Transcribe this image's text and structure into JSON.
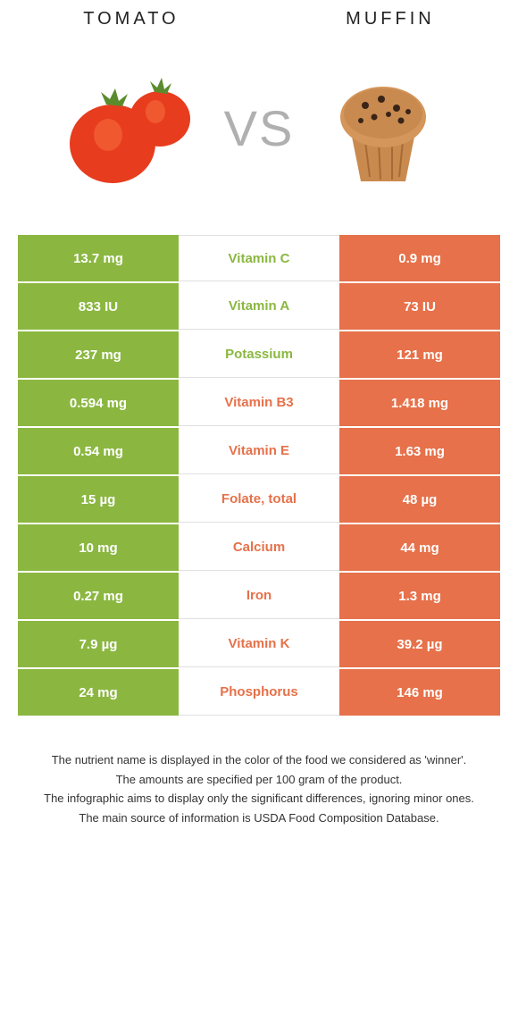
{
  "colors": {
    "left": "#8bb741",
    "right": "#e6714a",
    "mid_bg": "#ffffff",
    "vs_text": "#b0b0b0",
    "border": "#e0e0e0"
  },
  "header": {
    "left_title": "Tomato",
    "right_title": "Muffin",
    "vs_label": "VS"
  },
  "nutrients": [
    {
      "label": "Vitamin C",
      "left": "13.7 mg",
      "right": "0.9 mg",
      "winner": "left"
    },
    {
      "label": "Vitamin A",
      "left": "833 IU",
      "right": "73 IU",
      "winner": "left"
    },
    {
      "label": "Potassium",
      "left": "237 mg",
      "right": "121 mg",
      "winner": "left"
    },
    {
      "label": "Vitamin B3",
      "left": "0.594 mg",
      "right": "1.418 mg",
      "winner": "right"
    },
    {
      "label": "Vitamin E",
      "left": "0.54 mg",
      "right": "1.63 mg",
      "winner": "right"
    },
    {
      "label": "Folate, total",
      "left": "15 µg",
      "right": "48 µg",
      "winner": "right"
    },
    {
      "label": "Calcium",
      "left": "10 mg",
      "right": "44 mg",
      "winner": "right"
    },
    {
      "label": "Iron",
      "left": "0.27 mg",
      "right": "1.3 mg",
      "winner": "right"
    },
    {
      "label": "Vitamin K",
      "left": "7.9 µg",
      "right": "39.2 µg",
      "winner": "right"
    },
    {
      "label": "Phosphorus",
      "left": "24 mg",
      "right": "146 mg",
      "winner": "right"
    }
  ],
  "footnotes": [
    "The nutrient name is displayed in the color of the food we considered as 'winner'.",
    "The amounts are specified per 100 gram of the product.",
    "The infographic aims to display only the significant differences, ignoring minor ones.",
    "The main source of information is USDA Food Composition Database."
  ]
}
